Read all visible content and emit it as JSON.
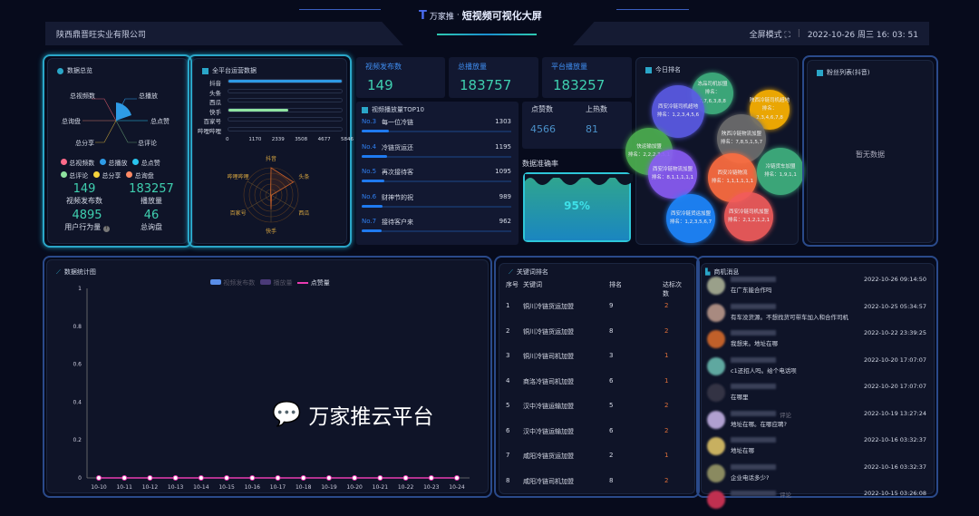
{
  "header": {
    "logo_text": "万家推",
    "title": "短视频可视化大屏",
    "company": "陕西鼎晋旺实业有限公司",
    "fullscreen": "全屏模式",
    "datetime": "2022-10-26 周三 16: 03: 51"
  },
  "overview": {
    "title": "数据总览",
    "rose_labels": [
      "总视频数",
      "总播放",
      "总点赞",
      "总评论",
      "总分享",
      "总询盘"
    ],
    "legend": [
      {
        "label": "总视频数",
        "color": "#ff6b8a"
      },
      {
        "label": "总播放",
        "color": "#2e9be6"
      },
      {
        "label": "总点赞",
        "color": "#29c4ee"
      },
      {
        "label": "总评论",
        "color": "#8fe3a0"
      },
      {
        "label": "总分享",
        "color": "#f5d33b"
      },
      {
        "label": "总询盘",
        "color": "#ff8a65"
      }
    ],
    "stats": [
      {
        "value": "149",
        "label": "视频发布数"
      },
      {
        "value": "183257",
        "label": "播放量"
      },
      {
        "value": "4895",
        "label": "用户行为量"
      },
      {
        "value": "46",
        "label": "总询盘"
      }
    ]
  },
  "platform": {
    "title": "全平台运营数据",
    "categories": [
      "抖音",
      "头条",
      "西瓜",
      "快手",
      "百家号",
      "哔哩哔哩"
    ],
    "values": [
      5846,
      0,
      0,
      3090,
      0,
      0
    ],
    "max": 5846,
    "ticks": [
      "0",
      "1170",
      "2339",
      "3508",
      "4677",
      "5846"
    ],
    "radar_labels": [
      "抖音",
      "头条",
      "西瓜",
      "快手",
      "百家号",
      "哔哩哔哩"
    ]
  },
  "cards": [
    {
      "label": "视频发布数",
      "value": "149"
    },
    {
      "label": "总播放量",
      "value": "183757"
    },
    {
      "label": "平台播放量",
      "value": "183257"
    }
  ],
  "top10": {
    "title": "视频播放量TOP10",
    "items": [
      {
        "no": "No.3",
        "name": "每一位冷链",
        "value": 1303
      },
      {
        "no": "No.4",
        "name": "冷链货运还",
        "value": 1195
      },
      {
        "no": "No.5",
        "name": "再次接待客",
        "value": 1095
      },
      {
        "no": "No.6",
        "name": "财神节的祝",
        "value": 989
      },
      {
        "no": "No.7",
        "name": "接待客户来",
        "value": 962
      }
    ]
  },
  "likes": {
    "label": "点赞数",
    "value": "4566",
    "label2": "上热数",
    "value2": "81"
  },
  "accuracy": {
    "label": "数据准确率",
    "value": "95%",
    "percent": 95
  },
  "ranking": {
    "title": "今日排名",
    "prefix": "排名：",
    "bubbles": [
      {
        "name": "冻品司机加盟",
        "rank": "2,7,6,3,8,8",
        "color": "#3fb27f"
      },
      {
        "name": "西安冷链司机超地",
        "rank": "1,2,3,4,5,6",
        "color": "#5b5be6"
      },
      {
        "name": "陕西冷链司机超地",
        "rank": "2,3,4,6,7,8",
        "color": "#fdb300"
      },
      {
        "name": "陕西冷链物流加盟",
        "rank": "7,8,5,1,5,7",
        "color": "#6e6e6e"
      },
      {
        "name": "快运输加盟",
        "rank": "2,2,2,3,5,1",
        "color": "#4caf50"
      },
      {
        "name": "西安冷链物流加盟",
        "rank": "8,1,1,1,1,1",
        "color": "#8a5cf6"
      },
      {
        "name": "西安冷链物流",
        "rank": "1,1,1,1,1,1",
        "color": "#ff6e40"
      },
      {
        "name": "冷链货车加盟",
        "rank": "1,9,1,1",
        "color": "#3fb27f"
      },
      {
        "name": "西安冷链货运加盟",
        "rank": "1,2,3,5,6,7",
        "color": "#1e88ff"
      },
      {
        "name": "西安冷链司机加盟",
        "rank": "2,1,2,1,2,1",
        "color": "#f25c5c"
      }
    ]
  },
  "fans": {
    "title": "粉丝列表(抖音)",
    "empty": "暂无数据"
  },
  "chart_data": {
    "type": "line",
    "title": "数据统计图",
    "legend": [
      "视频发布数",
      "播放量",
      "点赞量"
    ],
    "categories": [
      "10-10",
      "10-11",
      "10-12",
      "10-13",
      "10-14",
      "10-15",
      "10-16",
      "10-17",
      "10-18",
      "10-19",
      "10-20",
      "10-21",
      "10-22",
      "10-23",
      "10-24"
    ],
    "series": [
      {
        "name": "点赞量",
        "values": [
          0,
          0,
          0,
          0,
          0,
          0,
          0,
          0,
          0,
          0,
          0,
          0,
          0,
          0,
          0
        ],
        "color": "#e83bb0"
      }
    ],
    "ylim": [
      0,
      1
    ],
    "yticks": [
      "0",
      "0.2",
      "0.4",
      "0.6",
      "0.8",
      "1"
    ]
  },
  "keywords": {
    "title": "关键词排名",
    "headers": [
      "序号",
      "关键词",
      "排名",
      "达标次数"
    ],
    "rows": [
      [
        "1",
        "铜川冷链货运加盟",
        "9",
        "2"
      ],
      [
        "2",
        "铜川冷链货运加盟",
        "8",
        "2"
      ],
      [
        "3",
        "铜川冷链司机加盟",
        "3",
        "1"
      ],
      [
        "4",
        "商洛冷链司机加盟",
        "6",
        "1"
      ],
      [
        "5",
        "汉中冷链运输加盟",
        "5",
        "2"
      ],
      [
        "6",
        "汉中冷链运输加盟",
        "6",
        "2"
      ],
      [
        "7",
        "咸阳冷链货运加盟",
        "2",
        "1"
      ],
      [
        "8",
        "咸阳冷链司机加盟",
        "8",
        "2"
      ]
    ]
  },
  "comments": {
    "title": "商机消息",
    "items": [
      {
        "text": "在广东能合作吗",
        "time": "2022-10-26 09:14:50",
        "tag": ""
      },
      {
        "text": "有车没货源。不想找货可带车加入和合作司机",
        "time": "2022-10-25 05:34:57",
        "tag": ""
      },
      {
        "text": "我想来。地址在哪",
        "time": "2022-10-22 23:39:25",
        "tag": ""
      },
      {
        "text": "c1还招人吗。给个电话呗",
        "time": "2022-10-20 17:07:07",
        "tag": ""
      },
      {
        "text": "在哪里",
        "time": "2022-10-20 17:07:07",
        "tag": ""
      },
      {
        "text": "地址在哪。在哪应聘?",
        "time": "2022-10-19 13:27:24",
        "tag": "评论"
      },
      {
        "text": "地址在哪",
        "time": "2022-10-16 03:32:37",
        "tag": ""
      },
      {
        "text": "企业电话多少?",
        "time": "2022-10-16 03:32:37",
        "tag": ""
      },
      {
        "text": "",
        "time": "2022-10-15 03:26:08",
        "tag": "评论"
      }
    ]
  },
  "watermark": "万家推云平台"
}
